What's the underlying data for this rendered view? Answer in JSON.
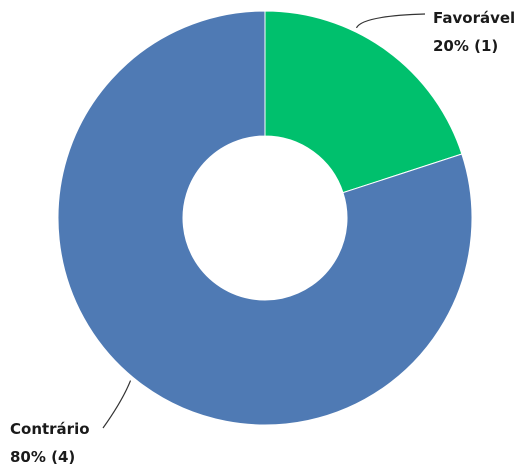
{
  "chart_data": {
    "type": "pie",
    "variant": "donut",
    "title": "",
    "slices": [
      {
        "label": "Favorável",
        "value_label": "20% (1)",
        "percent": 20,
        "count": 1,
        "color": "#00c06d"
      },
      {
        "label": "Contrário",
        "value_label": "80% (4)",
        "percent": 80,
        "count": 4,
        "color": "#4f7ab4"
      }
    ],
    "legend": "none"
  }
}
